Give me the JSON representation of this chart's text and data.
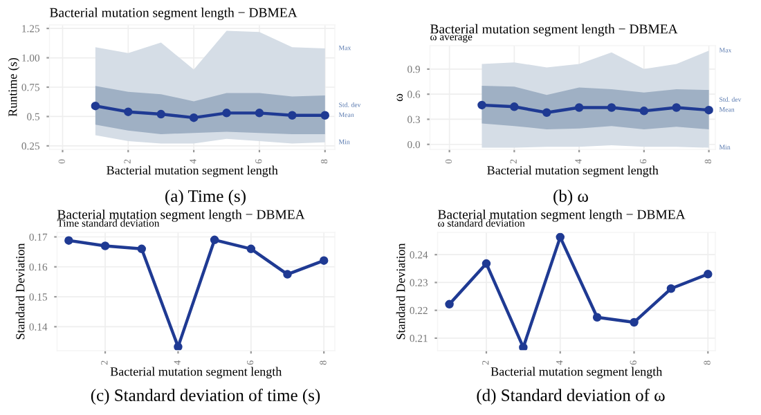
{
  "chart_data": [
    {
      "type": "line",
      "title": "Bacterial mutation segment length − DBMEA",
      "xlabel": "Bacterial mutation segment length",
      "ylabel": "Runtime (s)",
      "x": [
        1,
        2,
        3,
        4,
        5,
        6,
        7,
        8
      ],
      "xlim": [
        -0.4,
        8.3
      ],
      "xticks": [
        0,
        2,
        4,
        6,
        8
      ],
      "ylim": [
        0.22,
        1.28
      ],
      "yticks": [
        0.25,
        0.5,
        0.75,
        {
          "value": 1.0,
          "label": "1.00"
        },
        1.25
      ],
      "grid": true,
      "legend": false,
      "marker": "circle",
      "series": [
        {
          "color": "#d5dde6",
          "values": [
            null,
            null,
            null,
            null,
            null,
            null,
            null,
            null
          ],
          "lower": [
            0.34,
            0.29,
            0.27,
            0.27,
            0.31,
            0.29,
            0.27,
            0.28
          ],
          "upper": [
            1.09,
            1.04,
            1.13,
            0.9,
            1.23,
            1.22,
            1.09,
            1.08
          ]
        },
        {
          "color": "#9fb0c4",
          "values": [
            null,
            null,
            null,
            null,
            null,
            null,
            null,
            null
          ],
          "lower": [
            0.43,
            0.38,
            0.35,
            0.36,
            0.37,
            0.36,
            0.35,
            0.35
          ],
          "upper": [
            0.76,
            0.71,
            0.69,
            0.63,
            0.7,
            0.7,
            0.67,
            0.68
          ]
        },
        {
          "color": "#1f3a93",
          "values": [
            0.59,
            0.54,
            0.52,
            0.49,
            0.53,
            0.53,
            0.51,
            0.51
          ]
        }
      ],
      "annotations": [
        "Max",
        "Std. dev",
        "Mean",
        "Min",
        "(a) Time (s)"
      ]
    },
    {
      "type": "line",
      "title": "Bacterial mutation segment length − DBMEA",
      "subtitle": "ω average",
      "xlabel": "Bacterial mutation segment length",
      "ylabel": "ω",
      "x": [
        1,
        2,
        3,
        4,
        5,
        6,
        7,
        8
      ],
      "xlim": [
        -0.6,
        8.2
      ],
      "xticks": [
        0,
        2,
        4,
        6,
        8
      ],
      "ylim": [
        -0.06,
        1.18
      ],
      "yticks": [
        {
          "value": 0.0,
          "label": "0.0"
        },
        0.3,
        0.6,
        0.9
      ],
      "grid": true,
      "legend": false,
      "marker": "circle",
      "series": [
        {
          "color": "#d5dde6",
          "values": [
            null,
            null,
            null,
            null,
            null,
            null,
            null,
            null
          ],
          "lower": [
            -0.04,
            -0.04,
            -0.03,
            -0.03,
            -0.01,
            -0.03,
            -0.03,
            -0.04
          ],
          "upper": [
            0.96,
            0.98,
            0.92,
            0.96,
            1.1,
            0.9,
            0.96,
            1.12
          ]
        },
        {
          "color": "#9fb0c4",
          "values": [
            null,
            null,
            null,
            null,
            null,
            null,
            null,
            null
          ],
          "lower": [
            0.25,
            0.22,
            0.18,
            0.19,
            0.22,
            0.18,
            0.21,
            0.18
          ],
          "upper": [
            0.7,
            0.69,
            0.59,
            0.68,
            0.66,
            0.62,
            0.66,
            0.65
          ]
        },
        {
          "color": "#1f3a93",
          "values": [
            0.47,
            0.45,
            0.38,
            0.44,
            0.44,
            0.4,
            0.44,
            0.41
          ]
        }
      ],
      "annotations": [
        "Max",
        "Std. dev",
        "Mean",
        "Min",
        "(b) ω"
      ]
    },
    {
      "type": "line",
      "title": "Bacterial mutation segment length − DBMEA",
      "subtitle": "Time standard deviation",
      "xlabel": "Bacterial mutation segment length",
      "ylabel": "Standard Deviation",
      "x": [
        1,
        2,
        3,
        4,
        5,
        6,
        7,
        8
      ],
      "xlim": [
        0.68,
        8.3
      ],
      "xticks": [
        2,
        4,
        6,
        8
      ],
      "ylim": [
        0.132,
        0.1715
      ],
      "yticks": [
        0.14,
        0.15,
        0.16,
        0.17
      ],
      "grid": true,
      "legend": false,
      "marker": "circle",
      "series": [
        {
          "color": "#1f3a93",
          "values": [
            0.1688,
            0.167,
            0.166,
            0.1333,
            0.169,
            0.166,
            0.1575,
            0.1621
          ]
        }
      ],
      "annotations": [
        "(c) Standard deviation of time (s)"
      ]
    },
    {
      "type": "line",
      "title": "Bacterial mutation segment length − DBMEA",
      "subtitle": "ω standard deviation",
      "xlabel": "Bacterial mutation segment length",
      "ylabel": "Standard Deviation",
      "x": [
        1,
        2,
        3,
        4,
        5,
        6,
        7,
        8
      ],
      "xlim": [
        0.68,
        8.2
      ],
      "xticks": [
        2,
        4,
        6,
        8
      ],
      "ylim": [
        0.2055,
        0.248
      ],
      "yticks": [
        0.21,
        0.22,
        0.23,
        0.24
      ],
      "grid": true,
      "legend": false,
      "marker": "circle",
      "series": [
        {
          "color": "#1f3a93",
          "values": [
            0.2222,
            0.2368,
            0.2067,
            0.2463,
            0.2175,
            0.2157,
            0.2278,
            0.233
          ]
        }
      ],
      "annotations": [
        "(d) Standard deviation of ω"
      ]
    }
  ]
}
